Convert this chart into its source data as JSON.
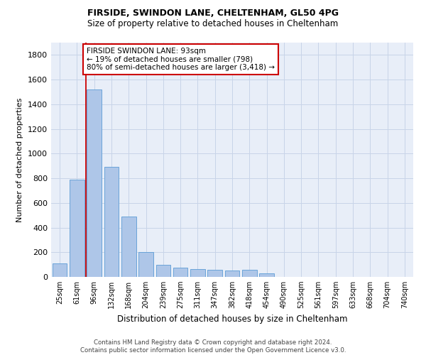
{
  "title1": "FIRSIDE, SWINDON LANE, CHELTENHAM, GL50 4PG",
  "title2": "Size of property relative to detached houses in Cheltenham",
  "xlabel": "Distribution of detached houses by size in Cheltenham",
  "ylabel": "Number of detached properties",
  "categories": [
    "25sqm",
    "61sqm",
    "96sqm",
    "132sqm",
    "168sqm",
    "204sqm",
    "239sqm",
    "275sqm",
    "311sqm",
    "347sqm",
    "382sqm",
    "418sqm",
    "454sqm",
    "490sqm",
    "525sqm",
    "561sqm",
    "597sqm",
    "633sqm",
    "668sqm",
    "704sqm",
    "740sqm"
  ],
  "values": [
    110,
    790,
    1520,
    890,
    490,
    200,
    100,
    75,
    65,
    55,
    50,
    55,
    30,
    0,
    0,
    0,
    0,
    0,
    0,
    0,
    0
  ],
  "bar_color": "#aec6e8",
  "bar_edge_color": "#5b9bd5",
  "grid_color": "#c8d4e8",
  "background_color": "#e8eef8",
  "annotation_text": "FIRSIDE SWINDON LANE: 93sqm\n← 19% of detached houses are smaller (798)\n80% of semi-detached houses are larger (3,418) →",
  "annotation_box_color": "#ffffff",
  "annotation_box_edge": "#cc0000",
  "footer_text": "Contains HM Land Registry data © Crown copyright and database right 2024.\nContains public sector information licensed under the Open Government Licence v3.0.",
  "ylim": [
    0,
    1900
  ],
  "yticks": [
    0,
    200,
    400,
    600,
    800,
    1000,
    1200,
    1400,
    1600,
    1800
  ],
  "red_line_x": 1.5
}
